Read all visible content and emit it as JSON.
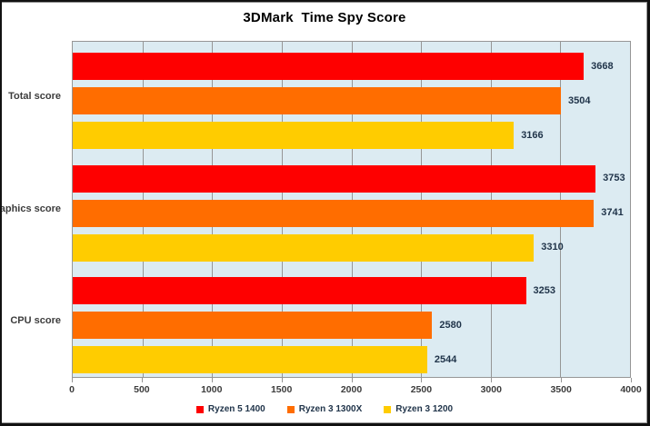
{
  "title": "3DMark  Time Spy Score",
  "chart_data": {
    "type": "bar",
    "orientation": "horizontal",
    "title": "3DMark  Time Spy Score",
    "categories": [
      "Total score",
      "Graphics score",
      "CPU score"
    ],
    "series": [
      {
        "name": "Ryzen 5 1400",
        "color": "#fe0000",
        "values": [
          3668,
          3753,
          3253
        ]
      },
      {
        "name": "Ryzen 3 1300X",
        "color": "#ff6d00",
        "values": [
          3504,
          3741,
          2580
        ]
      },
      {
        "name": "Ryzen 3 1200",
        "color": "#ffcc00",
        "values": [
          3166,
          3310,
          2544
        ]
      }
    ],
    "xlabel": "",
    "ylabel": "",
    "xlim": [
      0,
      4000
    ],
    "x_ticks": [
      "0",
      "500",
      "1000",
      "1500",
      "2000",
      "2500",
      "3000",
      "3500",
      "4000"
    ],
    "grid": true,
    "data_labels": true,
    "legend_position": "bottom",
    "colors": {
      "plot_background": "#dcebf2",
      "gridline": "#969696",
      "axis_border": "#969696",
      "title_text": "#000000",
      "label_text": "#3c3c3c",
      "data_label_text": "#1f3349",
      "frame_border": "#111111",
      "chart_background": "#ffffff"
    }
  }
}
